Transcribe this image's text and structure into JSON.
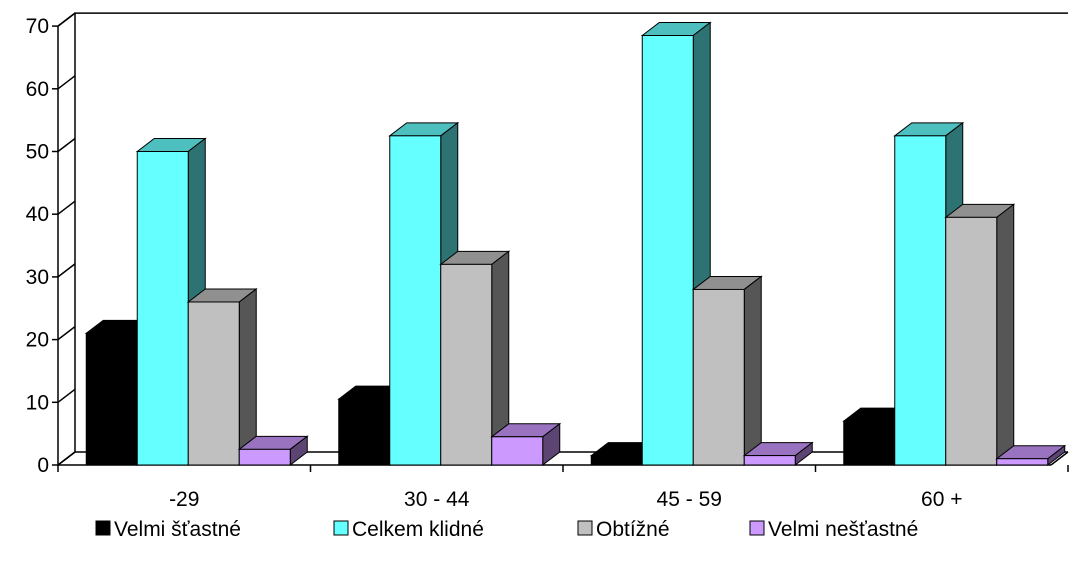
{
  "chart_data": {
    "type": "bar",
    "categories": [
      "-29",
      "30 - 44",
      "45 - 59",
      "60 +"
    ],
    "series": [
      {
        "name": "Velmi šťastné",
        "values": [
          21,
          10.5,
          1.5,
          7
        ],
        "color": "#000000"
      },
      {
        "name": "Celkem klidné",
        "values": [
          50,
          52.5,
          68.5,
          52.5
        ],
        "color": "#66ffff"
      },
      {
        "name": "Obtížné",
        "values": [
          26,
          32,
          28,
          39.5
        ],
        "color": "#c0c0c0"
      },
      {
        "name": "Velmi nešťastné",
        "values": [
          2.5,
          4.5,
          1.5,
          1
        ],
        "color": "#cc99ff"
      }
    ],
    "y_ticks": [
      "0",
      "10",
      "20",
      "30",
      "40",
      "50",
      "60",
      "70"
    ],
    "ylim": [
      0,
      70
    ],
    "grid": false,
    "legend_position": "bottom",
    "three_d": true
  }
}
